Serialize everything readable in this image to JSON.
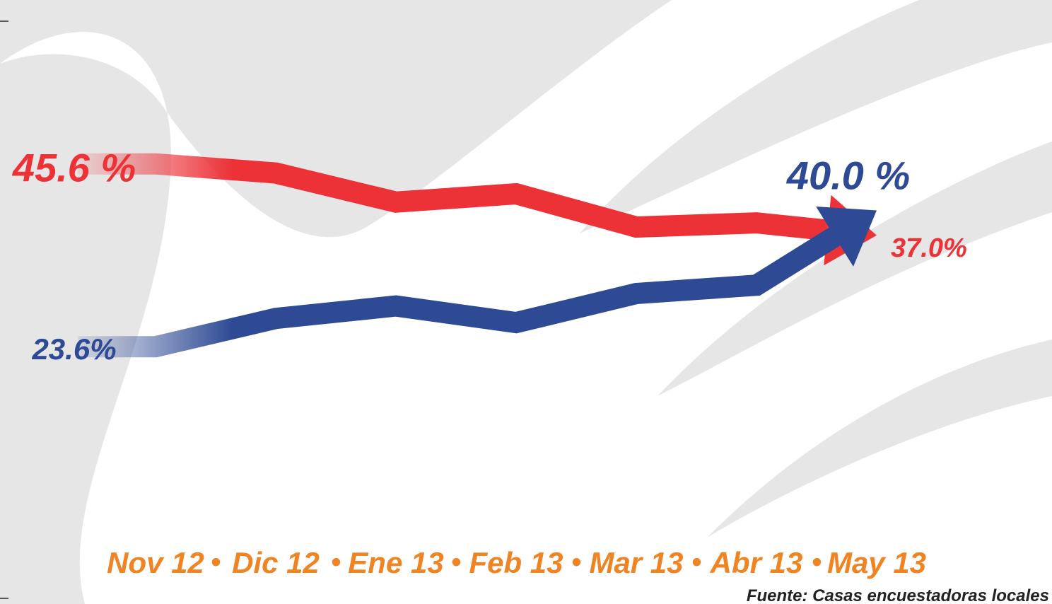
{
  "chart_data": {
    "type": "line",
    "categories": [
      "Nov 12",
      "Dic 12",
      "Ene 13",
      "Feb 13",
      "Mar 13",
      "Abr 13",
      "May 13"
    ],
    "separator": "•",
    "series": [
      {
        "name": null,
        "color": "#ec3137",
        "values": [
          45.6,
          44.5,
          41,
          42,
          38,
          38.5,
          37.0
        ],
        "value_labels": [
          "45.6 %",
          null,
          null,
          null,
          null,
          null,
          "37.0%"
        ]
      },
      {
        "name": null,
        "color": "#2e4a94",
        "values": [
          23.6,
          27,
          28.5,
          26.5,
          30,
          31,
          40.0
        ],
        "value_labels": [
          "23.6%",
          null,
          null,
          null,
          null,
          null,
          "40.0 %"
        ]
      }
    ],
    "ylim": [
      10,
      50
    ],
    "source": "Fuente: Casas encuestadoras locales"
  }
}
